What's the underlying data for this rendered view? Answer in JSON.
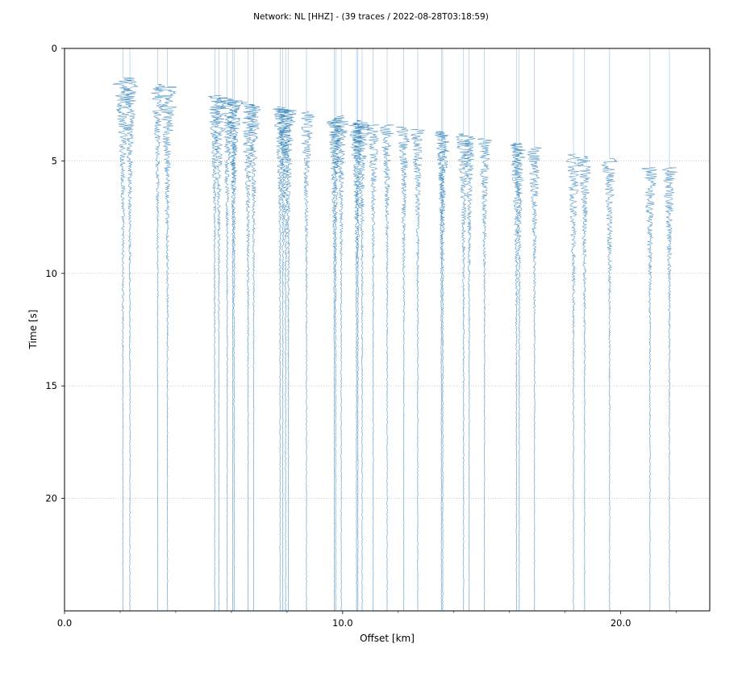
{
  "title": "Network: NL [HHZ] - (39 traces / 2022-08-28T03:18:59)",
  "colors": {
    "trace": "#1f77b4",
    "grid": "#b0b0b0",
    "axis": "#000000"
  },
  "chart_data": {
    "type": "line",
    "subtype": "seismic record section",
    "title": "Network: NL [HHZ] - (39 traces / 2022-08-28T03:18:59)",
    "xlabel": "Offset [km]",
    "ylabel": "Time [s]",
    "xlim": [
      0,
      23.2
    ],
    "ylim": [
      25,
      0
    ],
    "y_inverted": true,
    "xticks": [
      {
        "value": 0,
        "label": "0.0"
      },
      {
        "value": 10,
        "label": "10.0"
      },
      {
        "value": 20,
        "label": "20.0"
      }
    ],
    "x_minor_ticks": [
      2,
      4,
      6,
      8,
      12,
      14,
      16,
      18,
      22
    ],
    "yticks": [
      {
        "value": 0,
        "label": "0"
      },
      {
        "value": 5,
        "label": "5"
      },
      {
        "value": 10,
        "label": "10"
      },
      {
        "value": 15,
        "label": "15"
      },
      {
        "value": 20,
        "label": "20"
      }
    ],
    "grid": "horizontal dotted",
    "legend": "none",
    "trace_count": 39,
    "traces": [
      {
        "offset_km": 2.1,
        "arrival_s": 1.3,
        "amplitude": 0.85
      },
      {
        "offset_km": 2.35,
        "arrival_s": 1.4,
        "amplitude": 0.7
      },
      {
        "offset_km": 3.35,
        "arrival_s": 1.6,
        "amplitude": 0.55
      },
      {
        "offset_km": 3.7,
        "arrival_s": 1.7,
        "amplitude": 0.9
      },
      {
        "offset_km": 5.4,
        "arrival_s": 2.1,
        "amplitude": 0.6
      },
      {
        "offset_km": 5.55,
        "arrival_s": 2.2,
        "amplitude": 0.65
      },
      {
        "offset_km": 5.85,
        "arrival_s": 2.2,
        "amplitude": 0.6
      },
      {
        "offset_km": 6.1,
        "arrival_s": 2.3,
        "amplitude": 0.6
      },
      {
        "offset_km": 6.6,
        "arrival_s": 2.4,
        "amplitude": 0.75
      },
      {
        "offset_km": 6.8,
        "arrival_s": 2.5,
        "amplitude": 0.6
      },
      {
        "offset_km": 7.75,
        "arrival_s": 2.6,
        "amplitude": 0.55
      },
      {
        "offset_km": 7.95,
        "arrival_s": 2.7,
        "amplitude": 0.65
      },
      {
        "offset_km": 8.05,
        "arrival_s": 2.7,
        "amplitude": 0.6
      },
      {
        "offset_km": 8.7,
        "arrival_s": 2.8,
        "amplitude": 0.6
      },
      {
        "offset_km": 9.7,
        "arrival_s": 3.1,
        "amplitude": 0.6
      },
      {
        "offset_km": 9.95,
        "arrival_s": 3.0,
        "amplitude": 0.6
      },
      {
        "offset_km": 10.5,
        "arrival_s": 3.2,
        "amplitude": 0.65
      },
      {
        "offset_km": 10.7,
        "arrival_s": 3.3,
        "amplitude": 0.6
      },
      {
        "offset_km": 11.1,
        "arrival_s": 3.4,
        "amplitude": 0.55
      },
      {
        "offset_km": 11.6,
        "arrival_s": 3.4,
        "amplitude": 0.55
      },
      {
        "offset_km": 12.2,
        "arrival_s": 3.5,
        "amplitude": 0.55
      },
      {
        "offset_km": 12.7,
        "arrival_s": 3.6,
        "amplitude": 0.55
      },
      {
        "offset_km": 13.6,
        "arrival_s": 3.7,
        "amplitude": 0.6
      },
      {
        "offset_km": 14.35,
        "arrival_s": 3.8,
        "amplitude": 0.6
      },
      {
        "offset_km": 14.55,
        "arrival_s": 3.9,
        "amplitude": 0.55
      },
      {
        "offset_km": 15.1,
        "arrival_s": 4.0,
        "amplitude": 0.55
      },
      {
        "offset_km": 16.25,
        "arrival_s": 4.2,
        "amplitude": 0.6
      },
      {
        "offset_km": 16.35,
        "arrival_s": 4.2,
        "amplitude": 0.55
      },
      {
        "offset_km": 16.9,
        "arrival_s": 4.4,
        "amplitude": 0.6
      },
      {
        "offset_km": 18.3,
        "arrival_s": 4.7,
        "amplitude": 0.65
      },
      {
        "offset_km": 18.7,
        "arrival_s": 4.8,
        "amplitude": 0.6
      },
      {
        "offset_km": 19.6,
        "arrival_s": 4.9,
        "amplitude": 0.6
      },
      {
        "offset_km": 21.05,
        "arrival_s": 5.3,
        "amplitude": 0.6
      },
      {
        "offset_km": 21.75,
        "arrival_s": 5.3,
        "amplitude": 0.6
      },
      {
        "offset_km": 9.75,
        "arrival_s": 3.2,
        "amplitude": 0.5
      },
      {
        "offset_km": 7.85,
        "arrival_s": 2.7,
        "amplitude": 0.5
      },
      {
        "offset_km": 6.05,
        "arrival_s": 2.3,
        "amplitude": 0.5
      },
      {
        "offset_km": 10.55,
        "arrival_s": 3.3,
        "amplitude": 0.5
      },
      {
        "offset_km": 13.55,
        "arrival_s": 3.7,
        "amplitude": 0.5
      }
    ]
  }
}
